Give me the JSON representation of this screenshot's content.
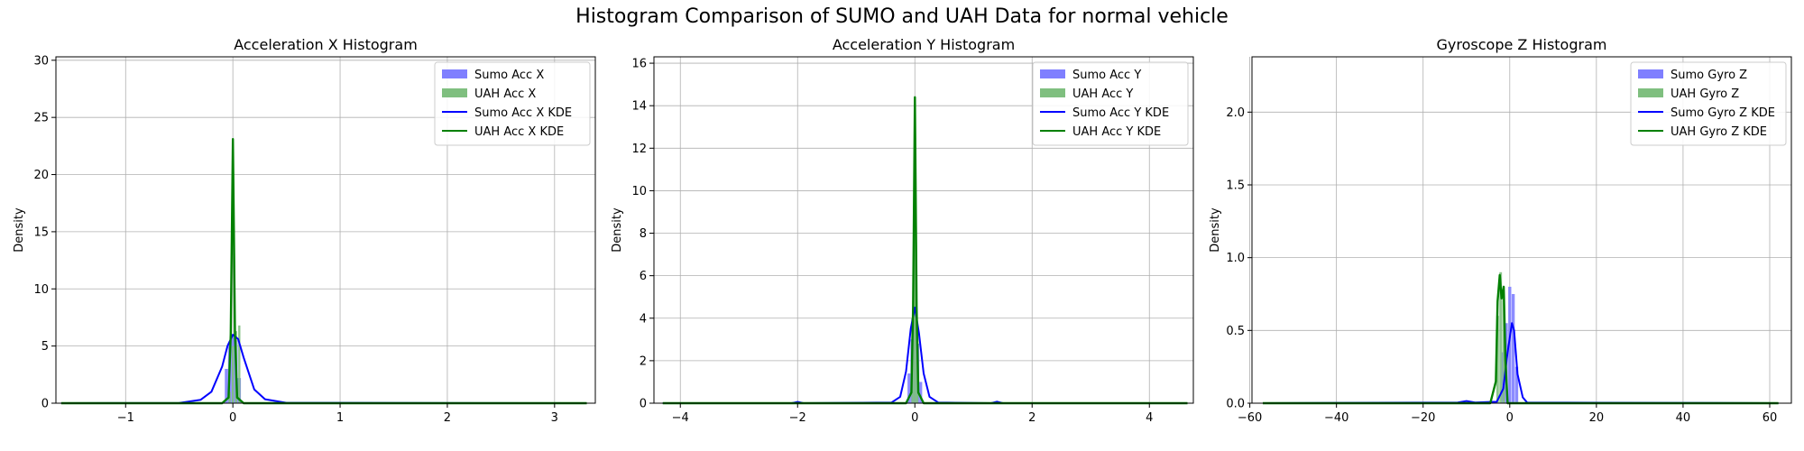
{
  "figure_title": "Histogram Comparison of SUMO and UAH Data for normal vehicle",
  "colors": {
    "sumo": "#0000ff",
    "uah": "#008000",
    "sumo_hist": "#7f7fff",
    "uah_hist": "#7fbf7f",
    "grid": "#b0b0b0"
  },
  "chart_data": [
    {
      "type": "histogram+kde",
      "title": "Acceleration X Histogram",
      "xlabel": "",
      "ylabel": "Density",
      "xlim": [
        -1.65,
        3.38
      ],
      "ylim": [
        0,
        30.3
      ],
      "xticks": [
        -1,
        0,
        1,
        2,
        3
      ],
      "yticks": [
        0,
        5,
        10,
        15,
        20,
        25,
        30
      ],
      "grid": true,
      "legend_position": "top-right",
      "legend": [
        "Sumo Acc X",
        "UAH Acc X",
        "Sumo Acc X KDE",
        "UAH Acc X KDE"
      ],
      "sumo_hist": {
        "x": [
          -0.06,
          -0.03,
          0.0,
          0.03,
          0.06
        ],
        "width": 0.03,
        "density": [
          3.0,
          5.3,
          6.0,
          5.5,
          2.2
        ]
      },
      "uah_hist": {
        "x": [
          -0.03,
          0.0,
          0.03,
          0.06
        ],
        "width": 0.02,
        "density": [
          1.0,
          5.0,
          6.3,
          6.8
        ]
      },
      "sumo_kde": {
        "x": [
          -1.6,
          -0.5,
          -0.3,
          -0.2,
          -0.1,
          -0.05,
          0.0,
          0.05,
          0.1,
          0.2,
          0.3,
          0.5,
          3.3
        ],
        "y": [
          0,
          0.02,
          0.3,
          1.0,
          3.2,
          5.0,
          6.0,
          5.6,
          4.0,
          1.2,
          0.35,
          0.03,
          0
        ]
      },
      "uah_kde": {
        "x": [
          -1.6,
          -0.1,
          -0.04,
          -0.02,
          0.0,
          0.02,
          0.04,
          0.1,
          3.3
        ],
        "y": [
          0,
          0,
          0.5,
          6.0,
          23.1,
          6.0,
          0.5,
          0,
          0
        ]
      }
    },
    {
      "type": "histogram+kde",
      "title": "Acceleration Y Histogram",
      "xlabel": "",
      "ylabel": "Density",
      "xlim": [
        -4.45,
        4.75
      ],
      "ylim": [
        0,
        16.3
      ],
      "xticks": [
        -4,
        -2,
        0,
        2,
        4
      ],
      "yticks": [
        0,
        2,
        4,
        6,
        8,
        10,
        12,
        14,
        16
      ],
      "grid": true,
      "legend_position": "top-right",
      "legend": [
        "Sumo Acc Y",
        "UAH Acc Y",
        "Sumo Acc Y KDE",
        "UAH Acc Y KDE"
      ],
      "sumo_hist": {
        "x": [
          -0.1,
          -0.05,
          0.0,
          0.05,
          0.1
        ],
        "width": 0.05,
        "density": [
          1.4,
          3.0,
          4.3,
          2.8,
          1.0
        ]
      },
      "uah_hist": {
        "x": [
          -0.04,
          0.0,
          0.04
        ],
        "width": 0.04,
        "density": [
          4.0,
          8.0,
          3.6
        ]
      },
      "sumo_kde": {
        "x": [
          -4.3,
          -2.1,
          -2.0,
          -1.9,
          -0.4,
          -0.25,
          -0.15,
          -0.07,
          0.0,
          0.07,
          0.15,
          0.25,
          0.4,
          1.3,
          1.4,
          1.5,
          4.65
        ],
        "y": [
          0,
          0,
          0.06,
          0,
          0.03,
          0.3,
          1.5,
          3.5,
          4.5,
          3.3,
          1.4,
          0.3,
          0.03,
          0,
          0.07,
          0,
          0
        ]
      },
      "uah_kde": {
        "x": [
          -4.3,
          -0.15,
          -0.06,
          -0.03,
          0.0,
          0.03,
          0.06,
          0.15,
          4.65
        ],
        "y": [
          0,
          0,
          0.5,
          4.5,
          14.4,
          4.5,
          0.5,
          0,
          0
        ]
      }
    },
    {
      "type": "histogram+kde",
      "title": "Gyroscope Z Histogram",
      "xlabel": "",
      "ylabel": "Density",
      "xlim": [
        -59.5,
        65.0
      ],
      "ylim": [
        0,
        2.38
      ],
      "xticks": [
        -60,
        -40,
        -20,
        0,
        20,
        40,
        60
      ],
      "yticks": [
        0.0,
        0.5,
        1.0,
        1.5,
        2.0
      ],
      "grid": true,
      "legend_position": "top-right",
      "legend": [
        "Sumo Gyro Z",
        "UAH Gyro Z",
        "Sumo Gyro Z KDE",
        "UAH Gyro Z KDE"
      ],
      "sumo_hist": {
        "x": [
          -1.6,
          -0.8,
          0.0,
          0.8,
          1.6
        ],
        "width": 0.7,
        "density": [
          0.35,
          0.55,
          0.8,
          0.75,
          0.25
        ]
      },
      "uah_hist": {
        "x": [
          -2.8,
          -2.1,
          -1.4
        ],
        "width": 0.6,
        "density": [
          0.6,
          0.9,
          0.75
        ]
      },
      "sumo_kde": {
        "x": [
          -57,
          -12,
          -10,
          -8,
          -3,
          -1.5,
          -0.5,
          0.5,
          1.0,
          1.8,
          3.0,
          4.0,
          62
        ],
        "y": [
          0,
          0.005,
          0.015,
          0.005,
          0.01,
          0.1,
          0.35,
          0.55,
          0.5,
          0.2,
          0.04,
          0.005,
          0
        ]
      },
      "uah_kde": {
        "x": [
          -57,
          -4.5,
          -3.2,
          -2.8,
          -2.3,
          -1.9,
          -1.4,
          -1.0,
          -0.5,
          62
        ],
        "y": [
          0,
          0,
          0.15,
          0.7,
          0.88,
          0.72,
          0.8,
          0.3,
          0,
          0
        ]
      }
    }
  ]
}
